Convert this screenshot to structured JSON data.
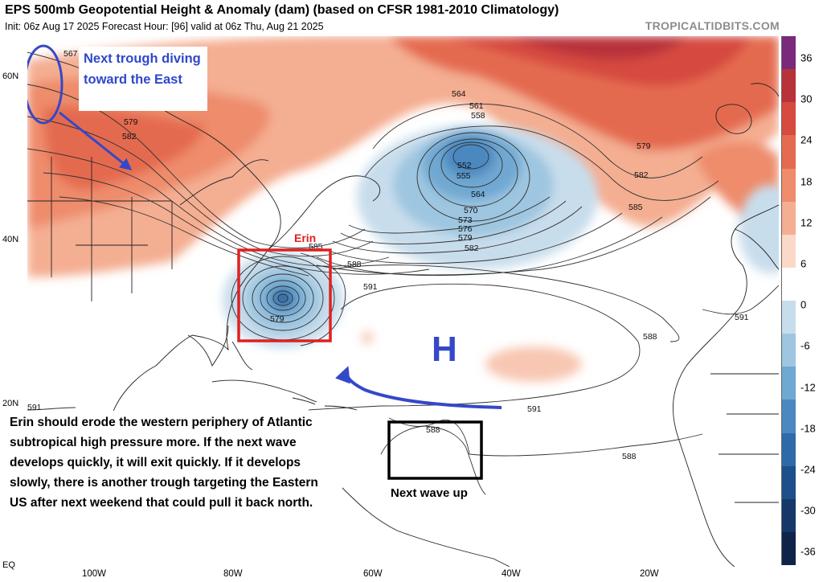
{
  "header": {
    "title": "EPS 500mb Geopotential Height & Anomaly (dam) (based on CFSR 1981-2010 Climatology)",
    "subtitle": "Init: 06z Aug 17 2025   Forecast Hour: [96]   valid at 06z Thu, Aug 21 2025",
    "brand": "TROPICALTIDBITS.COM"
  },
  "axes": {
    "lat_labels": [
      "60N",
      "40N",
      "20N",
      "EQ"
    ],
    "lon_labels": [
      "100W",
      "80W",
      "60W",
      "40W",
      "20W"
    ]
  },
  "colorbar": {
    "labels": [
      "36",
      "30",
      "24",
      "18",
      "12",
      "6",
      "0",
      "-6",
      "-12",
      "-18",
      "-24",
      "-30",
      "-36"
    ],
    "colors": [
      "#7a2a7a",
      "#b8323a",
      "#d64a3f",
      "#e46a50",
      "#ee8c6c",
      "#f4ae92",
      "#fbd9c8",
      "#ffffff",
      "#c8ddec",
      "#9ec6e0",
      "#6fa8d2",
      "#4b88c0",
      "#2f6aa8",
      "#1d4f8a",
      "#153868",
      "#0e2448"
    ]
  },
  "contour_labels": [
    "567",
    "579",
    "582",
    "564",
    "561",
    "558",
    "552",
    "555",
    "564",
    "570",
    "573",
    "576",
    "579",
    "582",
    "579",
    "582",
    "585",
    "585",
    "588",
    "591",
    "579",
    "588",
    "591",
    "591",
    "591",
    "588",
    "588"
  ],
  "annotations": {
    "trough_note": "Next trough diving toward the East",
    "erin_label": "Erin",
    "high_label": "H",
    "bottom_note": "Erin should erode the western periphery of Atlantic subtropical high pressure more. If the next wave develops quickly, it will exit quickly. If it develops slowly, there is another trough targeting the Eastern US after next weekend that could pull it back north.",
    "next_wave_label": "Next wave up"
  }
}
